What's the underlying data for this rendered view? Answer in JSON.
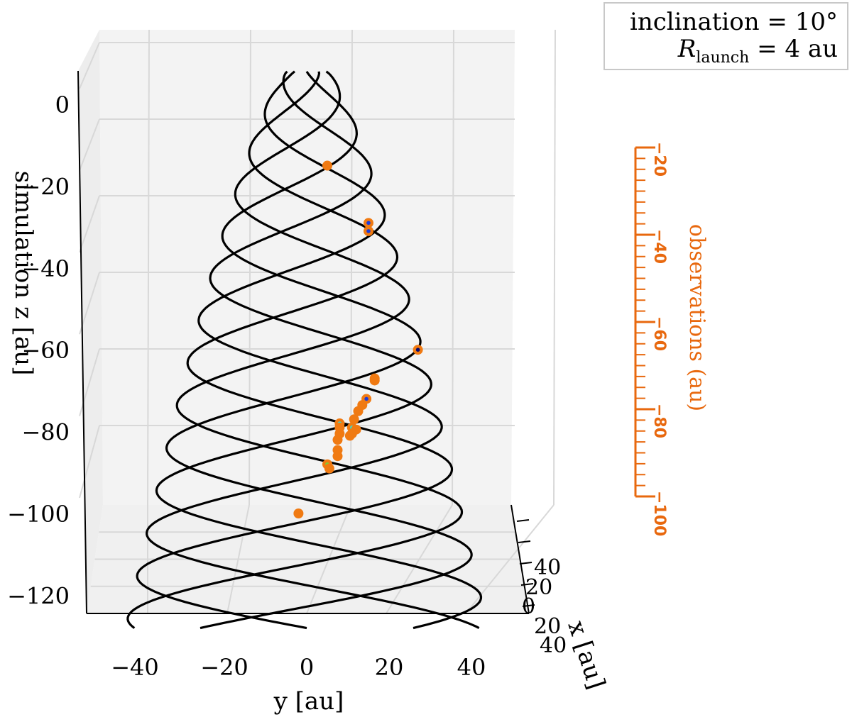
{
  "legend": {
    "line1": "inclination = 10°",
    "line2_symbol": "R",
    "line2_sub": "launch",
    "line2_rest": " = 4 au"
  },
  "colors": {
    "trajectory": "#000000",
    "observation": "#f07a12",
    "observation_axis": "#e8680e",
    "pane": "#f3f3f3",
    "grid": "#d8d8d8",
    "inner_dark": "#0a0a6e",
    "inner_blue": "#1e3cd8",
    "inner_cyan": "#40d8c8",
    "inner_green": "#7ad03a"
  },
  "chart_data": {
    "type": "scatter",
    "projection": "3d",
    "title": "",
    "xlabel": "x [au]",
    "ylabel": "y [au]",
    "zlabel": "z [au]",
    "zlabel_prefix": "simulation",
    "z_axis_title": "simulation  z [au]",
    "secondary_axis_label": "observations  (au)",
    "xlim": [
      -40,
      40
    ],
    "ylim": [
      -50,
      50
    ],
    "zlim": [
      -120,
      10
    ],
    "x_ticks": [
      "40",
      "20",
      "0",
      "20",
      "40"
    ],
    "y_ticks": [
      "−40",
      "−20",
      "0",
      "20",
      "40"
    ],
    "z_ticks": [
      "0",
      "−20",
      "−40",
      "−60",
      "−80",
      "−100",
      "−120"
    ],
    "secondary_ticks": [
      "−20",
      "−40",
      "−60",
      "−80",
      "−100"
    ],
    "secondary_range": [
      -20,
      -100
    ],
    "trajectories": {
      "count": 5,
      "top_z": 8,
      "bottom_z": -128,
      "amplitude_top": 5,
      "amplitude_bottom": 44,
      "cycles": 2.6
    },
    "observations": [
      {
        "y": 5,
        "z": -15,
        "inner": "orange"
      },
      {
        "y": 15,
        "z": -29,
        "inner": "blue"
      },
      {
        "y": 15,
        "z": -31,
        "inner": "blue"
      },
      {
        "y": 27,
        "z": -60,
        "inner": "dark"
      },
      {
        "y": 16.5,
        "z": -67,
        "inner": "orange"
      },
      {
        "y": 16.5,
        "z": -67.5,
        "inner": "orange"
      },
      {
        "y": 14.5,
        "z": -72,
        "inner": "blue"
      },
      {
        "y": 13.5,
        "z": -73.5,
        "inner": "orange"
      },
      {
        "y": 12.5,
        "z": -75,
        "inner": "orange"
      },
      {
        "y": 11.5,
        "z": -77,
        "inner": "orange"
      },
      {
        "y": 11,
        "z": -79,
        "inner": "cyan"
      },
      {
        "y": 12,
        "z": -79.5,
        "inner": "orange"
      },
      {
        "y": 11,
        "z": -80.5,
        "inner": "cyan"
      },
      {
        "y": 10.5,
        "z": -81,
        "inner": "orange"
      },
      {
        "y": 8,
        "z": -78,
        "inner": "cyan"
      },
      {
        "y": 8,
        "z": -79,
        "inner": "orange"
      },
      {
        "y": 8,
        "z": -80.5,
        "inner": "orange"
      },
      {
        "y": 7.5,
        "z": -82,
        "inner": "orange"
      },
      {
        "y": 7.5,
        "z": -84.5,
        "inner": "orange"
      },
      {
        "y": 7.5,
        "z": -86,
        "inner": "orange"
      },
      {
        "y": 5,
        "z": -88,
        "inner": "green"
      },
      {
        "y": 5.5,
        "z": -89,
        "inner": "orange"
      },
      {
        "y": -2,
        "z": -100,
        "inner": "orange"
      }
    ]
  }
}
